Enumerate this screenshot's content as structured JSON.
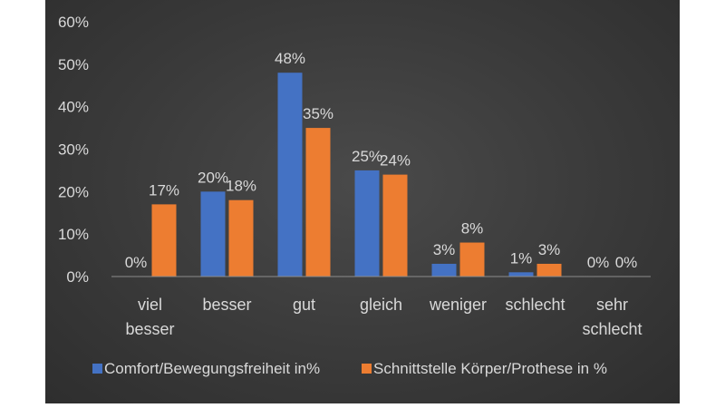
{
  "chart_data": {
    "type": "bar",
    "title": "",
    "xlabel": "",
    "ylabel": "",
    "ylim": [
      0,
      60
    ],
    "yticks": [
      "0%",
      "10%",
      "20%",
      "30%",
      "40%",
      "50%",
      "60%"
    ],
    "categories": [
      [
        "viel",
        "besser"
      ],
      [
        "besser"
      ],
      [
        "gut"
      ],
      [
        "gleich"
      ],
      [
        "weniger"
      ],
      [
        "schlecht"
      ],
      [
        "sehr",
        "schlecht"
      ]
    ],
    "series": [
      {
        "name": "Comfort/Bewegungsfreiheit  in%",
        "color": "#4472c4",
        "values": [
          0,
          20,
          48,
          25,
          3,
          1,
          0
        ],
        "labels": [
          "0%",
          "20%",
          "48%",
          "25%",
          "3%",
          "1%",
          "0%"
        ]
      },
      {
        "name": "Schnittstelle Körper/Prothese in %",
        "color": "#ed7d31",
        "values": [
          17,
          18,
          35,
          24,
          8,
          3,
          0
        ],
        "labels": [
          "17%",
          "18%",
          "35%",
          "24%",
          "8%",
          "3%",
          "0%"
        ]
      }
    ],
    "grid": false,
    "legend": "bottom"
  }
}
